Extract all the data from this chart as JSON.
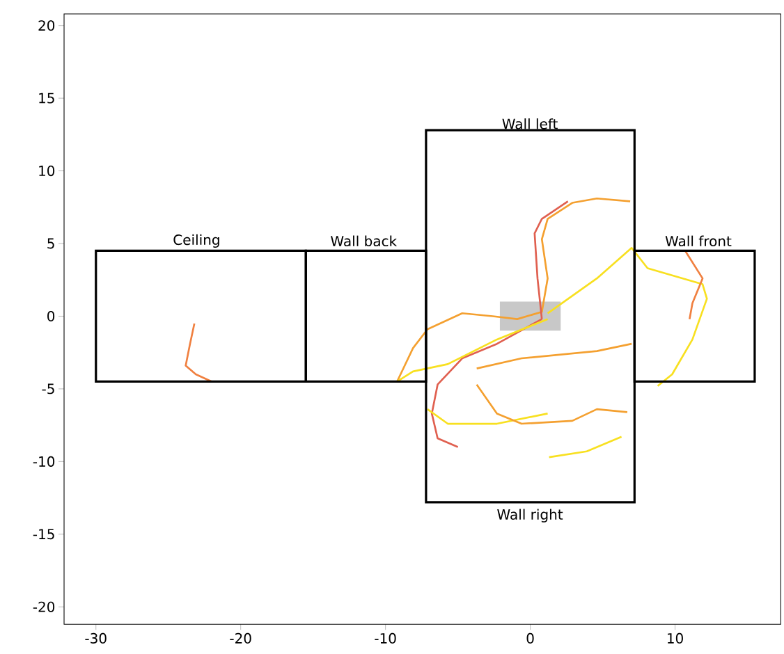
{
  "chart_data": {
    "type": "line",
    "xlim": [
      -32.2,
      17.3
    ],
    "ylim": [
      -21.2,
      20.8
    ],
    "xticks": [
      -30,
      -20,
      -10,
      0,
      10
    ],
    "yticks": [
      -20,
      -15,
      -10,
      -5,
      0,
      5,
      10,
      15,
      20
    ],
    "annotations": [
      "Ceiling",
      "Wall back",
      "Wall left",
      "Wall front",
      "Wall right"
    ],
    "series": [
      {
        "type": "area",
        "color": "#c8c8c8",
        "x": [
          -2.1,
          -2.1,
          2.1,
          2.1
        ],
        "values": [
          -1,
          1,
          1,
          -1
        ]
      },
      {
        "color": "#f08040",
        "x": [
          -23.2,
          -23.5,
          -23.8,
          -23.1,
          -22.0
        ],
        "values": [
          -0.5,
          -1.9,
          -3.4,
          -4.0,
          -4.5
        ]
      },
      {
        "color": "#f4a030",
        "x": [
          -9.2,
          -8.1,
          -7.1,
          -4.7,
          -2.6,
          -0.9,
          0.8,
          1.2,
          0.8,
          1.2,
          2.9,
          4.6,
          6.9
        ],
        "values": [
          -4.5,
          -2.2,
          -0.9,
          0.2,
          0,
          -0.2,
          0.3,
          2.6,
          5.3,
          6.7,
          7.8,
          8.1,
          7.9
        ]
      },
      {
        "color": "#e06050",
        "x": [
          0.8,
          0.5,
          0.3,
          0.8,
          2.6
        ],
        "values": [
          -0.2,
          2.6,
          5.7,
          6.7,
          7.9
        ]
      },
      {
        "color": "#e06050",
        "x": [
          0.8,
          -2.3,
          -4.7,
          -6.4,
          -6.8,
          -6.4,
          -5.0
        ],
        "values": [
          -0.2,
          -1.9,
          -2.9,
          -4.7,
          -6.7,
          -8.4,
          -9.0
        ]
      },
      {
        "color": "#f8e020",
        "x": [
          1.2,
          4.6,
          7.0,
          8.1,
          11.9,
          12.2,
          11.2,
          9.8,
          8.8
        ],
        "values": [
          0.2,
          2.6,
          4.7,
          3.3,
          2.2,
          1.2,
          -1.6,
          -4.0,
          -4.8
        ]
      },
      {
        "color": "#f8e020",
        "x": [
          1.2,
          -2.3,
          -5.7,
          -8.1,
          -9.2
        ],
        "values": [
          -0.2,
          -1.6,
          -3.3,
          -3.8,
          -4.5
        ]
      },
      {
        "color": "#f8e020",
        "x": [
          -7.1,
          -5.7,
          -2.3,
          1.2
        ],
        "values": [
          -6.4,
          -7.4,
          -7.4,
          -6.7
        ]
      },
      {
        "color": "#f4a030",
        "x": [
          -3.7,
          -2.3,
          -0.6,
          2.9,
          4.6,
          6.7
        ],
        "values": [
          -4.7,
          -6.7,
          -7.4,
          -7.2,
          -6.4,
          -6.6
        ]
      },
      {
        "color": "#f8e020",
        "x": [
          1.3,
          3.9,
          6.3
        ],
        "values": [
          -9.7,
          -9.3,
          -8.3
        ]
      },
      {
        "color": "#f4a030",
        "x": [
          -3.7,
          -0.6,
          4.6,
          7.0
        ],
        "values": [
          -3.6,
          -2.9,
          -2.4,
          -1.9
        ]
      },
      {
        "color": "#f08040",
        "x": [
          10.7,
          11.9,
          11.2,
          11.0
        ],
        "values": [
          4.5,
          2.6,
          0.9,
          -0.2
        ]
      }
    ]
  }
}
